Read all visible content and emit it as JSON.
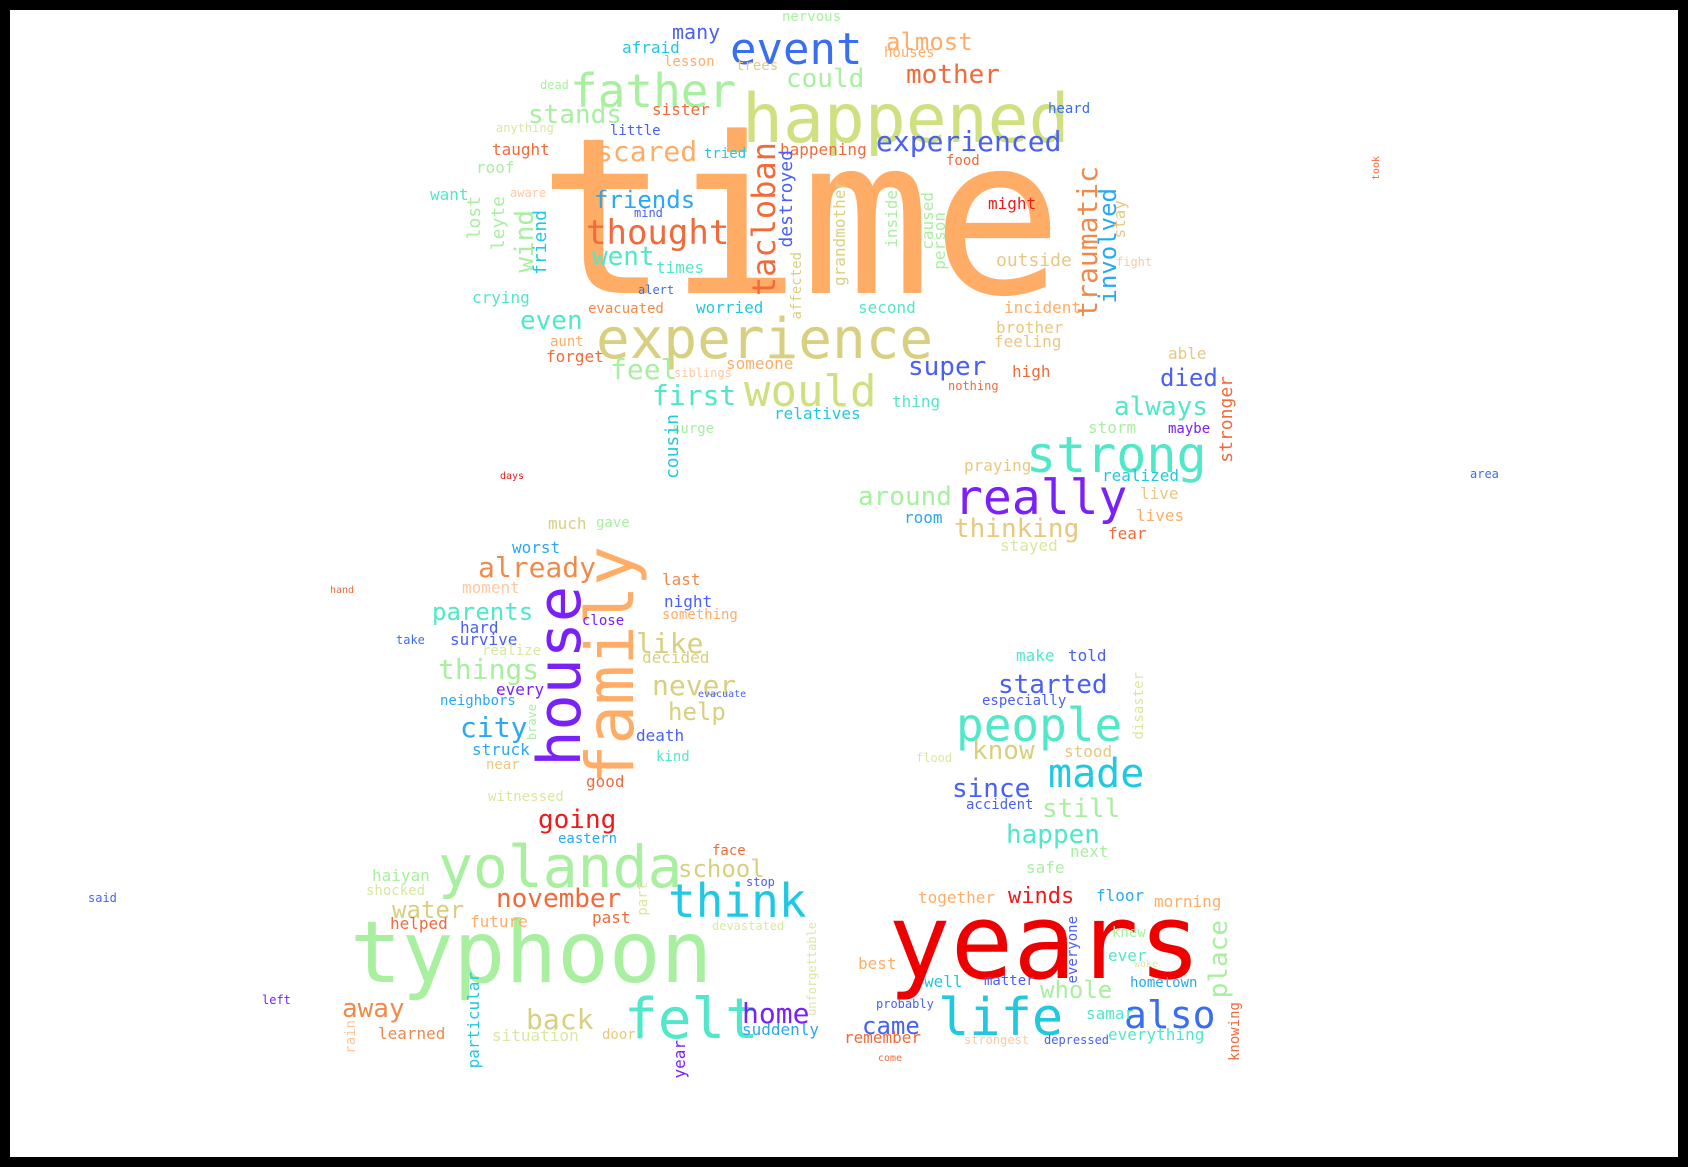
{
  "words": [
    {
      "text": "time",
      "color": "#ffad66",
      "vertical": false
    },
    {
      "text": "happened",
      "color": "#cfe080",
      "vertical": false
    },
    {
      "text": "experience",
      "color": "#d8d080",
      "vertical": false
    },
    {
      "text": "father",
      "color": "#a8f0a0",
      "vertical": false
    },
    {
      "text": "event",
      "color": "#3a6ef0",
      "vertical": false
    },
    {
      "text": "would",
      "color": "#cfe080",
      "vertical": false
    },
    {
      "text": "experienced",
      "color": "#4a60f0",
      "vertical": false
    },
    {
      "text": "strong",
      "color": "#50e8c8",
      "vertical": false
    },
    {
      "text": "really",
      "color": "#7a20f8",
      "vertical": false
    },
    {
      "text": "thought",
      "color": "#f06a3a",
      "vertical": false
    },
    {
      "text": "friends",
      "color": "#2aa8f0",
      "vertical": false
    },
    {
      "text": "mother",
      "color": "#f06a3a",
      "vertical": false
    },
    {
      "text": "could",
      "color": "#a8f0a0",
      "vertical": false
    },
    {
      "text": "almost",
      "color": "#ffad66",
      "vertical": false
    },
    {
      "text": "many",
      "color": "#4a60f0",
      "vertical": false
    },
    {
      "text": "stands",
      "color": "#a8f0a0",
      "vertical": false
    },
    {
      "text": "scared",
      "color": "#ffad66",
      "vertical": false
    },
    {
      "text": "tacloban",
      "color": "#f06a3a",
      "vertical": true
    },
    {
      "text": "traumatic",
      "color": "#f08a4a",
      "vertical": true
    },
    {
      "text": "involved",
      "color": "#2aa8f0",
      "vertical": true
    },
    {
      "text": "wind",
      "color": "#a8f0a0",
      "vertical": true
    },
    {
      "text": "went",
      "color": "#50e8c8",
      "vertical": false
    },
    {
      "text": "even",
      "color": "#50e8c8",
      "vertical": false
    },
    {
      "text": "feel",
      "color": "#a8f0a0",
      "vertical": false
    },
    {
      "text": "first",
      "color": "#50e8c8",
      "vertical": false
    },
    {
      "text": "super",
      "color": "#4a60f0",
      "vertical": false
    },
    {
      "text": "died",
      "color": "#4a60f0",
      "vertical": false
    },
    {
      "text": "always",
      "color": "#50e8c8",
      "vertical": false
    },
    {
      "text": "around",
      "color": "#a8f0a0",
      "vertical": false
    },
    {
      "text": "thinking",
      "color": "#e8c880",
      "vertical": false
    },
    {
      "text": "family",
      "color": "#ffad66",
      "vertical": true
    },
    {
      "text": "house",
      "color": "#7a20f8",
      "vertical": true
    },
    {
      "text": "already",
      "color": "#f08a4a",
      "vertical": false
    },
    {
      "text": "parents",
      "color": "#50e8c8",
      "vertical": false
    },
    {
      "text": "things",
      "color": "#a8f0a0",
      "vertical": false
    },
    {
      "text": "like",
      "color": "#d8d080",
      "vertical": false
    },
    {
      "text": "never",
      "color": "#d8d080",
      "vertical": false
    },
    {
      "text": "help",
      "color": "#d8d080",
      "vertical": false
    },
    {
      "text": "city",
      "color": "#2aa8f0",
      "vertical": false
    },
    {
      "text": "going",
      "color": "#ee1a1a",
      "vertical": false
    },
    {
      "text": "people",
      "color": "#50e8c8",
      "vertical": false
    },
    {
      "text": "started",
      "color": "#4a60f0",
      "vertical": false
    },
    {
      "text": "know",
      "color": "#d8d080",
      "vertical": false
    },
    {
      "text": "made",
      "color": "#20c8e0",
      "vertical": false
    },
    {
      "text": "since",
      "color": "#4a60f0",
      "vertical": false
    },
    {
      "text": "still",
      "color": "#a8f0a0",
      "vertical": false
    },
    {
      "text": "happen",
      "color": "#50e8c8",
      "vertical": false
    },
    {
      "text": "yolanda",
      "color": "#a8f0a0",
      "vertical": false
    },
    {
      "text": "typhoon",
      "color": "#a8f0a0",
      "vertical": false
    },
    {
      "text": "think",
      "color": "#20c8e0",
      "vertical": false
    },
    {
      "text": "school",
      "color": "#d8d080",
      "vertical": false
    },
    {
      "text": "november",
      "color": "#f06a3a",
      "vertical": false
    },
    {
      "text": "water",
      "color": "#d8d080",
      "vertical": false
    },
    {
      "text": "felt",
      "color": "#50e8c8",
      "vertical": false
    },
    {
      "text": "away",
      "color": "#f08a4a",
      "vertical": false
    },
    {
      "text": "back",
      "color": "#d8d080",
      "vertical": false
    },
    {
      "text": "home",
      "color": "#7a20f8",
      "vertical": false
    },
    {
      "text": "years",
      "color": "#ee0000",
      "vertical": false
    },
    {
      "text": "life",
      "color": "#20c8e0",
      "vertical": false
    },
    {
      "text": "also",
      "color": "#3a6ef0",
      "vertical": false
    },
    {
      "text": "winds",
      "color": "#ee1a1a",
      "vertical": false
    },
    {
      "text": "whole",
      "color": "#a8f0a0",
      "vertical": false
    },
    {
      "text": "came",
      "color": "#4a60f0",
      "vertical": false
    },
    {
      "text": "place",
      "color": "#a8f0a0",
      "vertical": true
    },
    {
      "text": "nervous",
      "color": "#a8f0a0",
      "vertical": false
    },
    {
      "text": "afraid",
      "color": "#20c8e0",
      "vertical": false
    },
    {
      "text": "houses",
      "color": "#ffad66",
      "vertical": false
    },
    {
      "text": "lesson",
      "color": "#ffad66",
      "vertical": false
    },
    {
      "text": "trees",
      "color": "#e8c880",
      "vertical": false
    },
    {
      "text": "dead",
      "color": "#a8f0a0",
      "vertical": false
    },
    {
      "text": "sister",
      "color": "#f06a3a",
      "vertical": false
    },
    {
      "text": "heard",
      "color": "#3a6ef0",
      "vertical": false
    },
    {
      "text": "anything",
      "color": "#d8e8a0",
      "vertical": false
    },
    {
      "text": "little",
      "color": "#4a60f0",
      "vertical": false
    },
    {
      "text": "taught",
      "color": "#f06a3a",
      "vertical": false
    },
    {
      "text": "tried",
      "color": "#20c8e0",
      "vertical": false
    },
    {
      "text": "happening",
      "color": "#f06a3a",
      "vertical": false
    },
    {
      "text": "roof",
      "color": "#a8f0a0",
      "vertical": false
    },
    {
      "text": "food",
      "color": "#f06a3a",
      "vertical": false
    },
    {
      "text": "want",
      "color": "#50e8c8",
      "vertical": false
    },
    {
      "text": "aware",
      "color": "#ffc8a0",
      "vertical": false
    },
    {
      "text": "mind",
      "color": "#4a60f0",
      "vertical": false
    },
    {
      "text": "might",
      "color": "#ee1a1a",
      "vertical": false
    },
    {
      "text": "lost",
      "color": "#a8f0a0",
      "vertical": true
    },
    {
      "text": "leyte",
      "color": "#a8f0a0",
      "vertical": true
    },
    {
      "text": "friend",
      "color": "#20c8e0",
      "vertical": true
    },
    {
      "text": "destroyed",
      "color": "#4a60f0",
      "vertical": true
    },
    {
      "text": "affected",
      "color": "#d8d080",
      "vertical": true
    },
    {
      "text": "grandmother",
      "color": "#d8d080",
      "vertical": true
    },
    {
      "text": "inside",
      "color": "#a8f0a0",
      "vertical": true
    },
    {
      "text": "caused",
      "color": "#a8f0a0",
      "vertical": true
    },
    {
      "text": "person",
      "color": "#a8f0a0",
      "vertical": true
    },
    {
      "text": "stay",
      "color": "#e8c880",
      "vertical": true
    },
    {
      "text": "fight",
      "color": "#ffc8a0",
      "vertical": false
    },
    {
      "text": "times",
      "color": "#50e8c8",
      "vertical": false
    },
    {
      "text": "outside",
      "color": "#e8c880",
      "vertical": false
    },
    {
      "text": "alert",
      "color": "#3a6ef0",
      "vertical": false
    },
    {
      "text": "crying",
      "color": "#50e8c8",
      "vertical": false
    },
    {
      "text": "evacuated",
      "color": "#f08a4a",
      "vertical": false
    },
    {
      "text": "worried",
      "color": "#20c8e0",
      "vertical": false
    },
    {
      "text": "second",
      "color": "#50e8c8",
      "vertical": false
    },
    {
      "text": "incident",
      "color": "#ffad66",
      "vertical": false
    },
    {
      "text": "brother",
      "color": "#e8c880",
      "vertical": false
    },
    {
      "text": "feeling",
      "color": "#e8c880",
      "vertical": false
    },
    {
      "text": "aunt",
      "color": "#ffad66",
      "vertical": false
    },
    {
      "text": "forget",
      "color": "#f06a3a",
      "vertical": false
    },
    {
      "text": "someone",
      "color": "#ffad66",
      "vertical": false
    },
    {
      "text": "siblings",
      "color": "#ffc8a0",
      "vertical": false
    },
    {
      "text": "nothing",
      "color": "#f06a3a",
      "vertical": false
    },
    {
      "text": "high",
      "color": "#f06a3a",
      "vertical": false
    },
    {
      "text": "able",
      "color": "#e8c880",
      "vertical": false
    },
    {
      "text": "thing",
      "color": "#50e8c8",
      "vertical": false
    },
    {
      "text": "relatives",
      "color": "#20c8e0",
      "vertical": false
    },
    {
      "text": "surge",
      "color": "#a8f0a0",
      "vertical": false
    },
    {
      "text": "cousin",
      "color": "#20c8e0",
      "vertical": true
    },
    {
      "text": "storm",
      "color": "#a8f0a0",
      "vertical": false
    },
    {
      "text": "maybe",
      "color": "#7a20f8",
      "vertical": false
    },
    {
      "text": "stronger",
      "color": "#f06a3a",
      "vertical": true
    },
    {
      "text": "praying",
      "color": "#e8c880",
      "vertical": false
    },
    {
      "text": "realized",
      "color": "#20c8e0",
      "vertical": false
    },
    {
      "text": "live",
      "color": "#e8c880",
      "vertical": false
    },
    {
      "text": "lives",
      "color": "#ffad66",
      "vertical": false
    },
    {
      "text": "room",
      "color": "#2aa8f0",
      "vertical": false
    },
    {
      "text": "fear",
      "color": "#f06a3a",
      "vertical": false
    },
    {
      "text": "stayed",
      "color": "#d8e8a0",
      "vertical": false
    },
    {
      "text": "took",
      "color": "#f06a3a",
      "vertical": true
    },
    {
      "text": "area",
      "color": "#3a6ef0",
      "vertical": false
    },
    {
      "text": "days",
      "color": "#ee1a1a",
      "vertical": false
    },
    {
      "text": "much",
      "color": "#d8d080",
      "vertical": false
    },
    {
      "text": "gave",
      "color": "#a8f0a0",
      "vertical": false
    },
    {
      "text": "worst",
      "color": "#2aa8f0",
      "vertical": false
    },
    {
      "text": "last",
      "color": "#f08a4a",
      "vertical": false
    },
    {
      "text": "moment",
      "color": "#ffc8a0",
      "vertical": false
    },
    {
      "text": "something",
      "color": "#ffad66",
      "vertical": false
    },
    {
      "text": "night",
      "color": "#4a60f0",
      "vertical": false
    },
    {
      "text": "hand",
      "color": "#f06a3a",
      "vertical": false
    },
    {
      "text": "hard",
      "color": "#4a60f0",
      "vertical": false
    },
    {
      "text": "close",
      "color": "#7a20f8",
      "vertical": false
    },
    {
      "text": "take",
      "color": "#3a6ef0",
      "vertical": false
    },
    {
      "text": "survive",
      "color": "#4a60f0",
      "vertical": false
    },
    {
      "text": "realize",
      "color": "#d8e8a0",
      "vertical": false
    },
    {
      "text": "decided",
      "color": "#d8d080",
      "vertical": false
    },
    {
      "text": "every",
      "color": "#7a20f8",
      "vertical": false
    },
    {
      "text": "evacuate",
      "color": "#4a60f0",
      "vertical": false
    },
    {
      "text": "neighbors",
      "color": "#2aa8f0",
      "vertical": false
    },
    {
      "text": "brave",
      "color": "#a8f0a0",
      "vertical": true
    },
    {
      "text": "death",
      "color": "#4a60f0",
      "vertical": false
    },
    {
      "text": "struck",
      "color": "#2aa8f0",
      "vertical": false
    },
    {
      "text": "kind",
      "color": "#50e8c8",
      "vertical": false
    },
    {
      "text": "near",
      "color": "#e8c880",
      "vertical": false
    },
    {
      "text": "good",
      "color": "#f06a3a",
      "vertical": false
    },
    {
      "text": "witnessed",
      "color": "#d8e8a0",
      "vertical": false
    },
    {
      "text": "eastern",
      "color": "#2aa8f0",
      "vertical": false
    },
    {
      "text": "make",
      "color": "#50e8c8",
      "vertical": false
    },
    {
      "text": "told",
      "color": "#4a60f0",
      "vertical": false
    },
    {
      "text": "especially",
      "color": "#4a60f0",
      "vertical": false
    },
    {
      "text": "disaster",
      "color": "#d8e8a0",
      "vertical": true
    },
    {
      "text": "stood",
      "color": "#e8c880",
      "vertical": false
    },
    {
      "text": "flood",
      "color": "#d8e8a0",
      "vertical": false
    },
    {
      "text": "accident",
      "color": "#4a60f0",
      "vertical": false
    },
    {
      "text": "face",
      "color": "#f06a3a",
      "vertical": false
    },
    {
      "text": "next",
      "color": "#a8f0a0",
      "vertical": false
    },
    {
      "text": "haiyan",
      "color": "#a8f0a0",
      "vertical": false
    },
    {
      "text": "shocked",
      "color": "#d8e8a0",
      "vertical": false
    },
    {
      "text": "stop",
      "color": "#4a60f0",
      "vertical": false
    },
    {
      "text": "safe",
      "color": "#a8f0a0",
      "vertical": false
    },
    {
      "text": "part",
      "color": "#d8e8a0",
      "vertical": true
    },
    {
      "text": "said",
      "color": "#4a60f0",
      "vertical": false
    },
    {
      "text": "helped",
      "color": "#f06a3a",
      "vertical": false
    },
    {
      "text": "future",
      "color": "#ffad66",
      "vertical": false
    },
    {
      "text": "past",
      "color": "#f06a3a",
      "vertical": false
    },
    {
      "text": "devastated",
      "color": "#d8e8a0",
      "vertical": false
    },
    {
      "text": "together",
      "color": "#ffad66",
      "vertical": false
    },
    {
      "text": "floor",
      "color": "#2aa8f0",
      "vertical": false
    },
    {
      "text": "morning",
      "color": "#ffad66",
      "vertical": false
    },
    {
      "text": "everyone",
      "color": "#4a60f0",
      "vertical": true
    },
    {
      "text": "knew",
      "color": "#a8f0a0",
      "vertical": false
    },
    {
      "text": "unforgettable",
      "color": "#d8e8a0",
      "vertical": true
    },
    {
      "text": "best",
      "color": "#ffad66",
      "vertical": false
    },
    {
      "text": "ever",
      "color": "#50e8c8",
      "vertical": false
    },
    {
      "text": "woke",
      "color": "#d8e8a0",
      "vertical": false
    },
    {
      "text": "well",
      "color": "#20c8e0",
      "vertical": false
    },
    {
      "text": "matter",
      "color": "#4a60f0",
      "vertical": false
    },
    {
      "text": "hometown",
      "color": "#2aa8f0",
      "vertical": false
    },
    {
      "text": "left",
      "color": "#7a20f8",
      "vertical": false
    },
    {
      "text": "particular",
      "color": "#20c8e0",
      "vertical": true
    },
    {
      "text": "probably",
      "color": "#4a60f0",
      "vertical": false
    },
    {
      "text": "samar",
      "color": "#50e8c8",
      "vertical": false
    },
    {
      "text": "situation",
      "color": "#d8e8a0",
      "vertical": false
    },
    {
      "text": "door",
      "color": "#e8c880",
      "vertical": false
    },
    {
      "text": "suddenly",
      "color": "#2aa8f0",
      "vertical": false
    },
    {
      "text": "remember",
      "color": "#f06a3a",
      "vertical": false
    },
    {
      "text": "strongest",
      "color": "#ffc8a0",
      "vertical": false
    },
    {
      "text": "depressed",
      "color": "#4a60f0",
      "vertical": false
    },
    {
      "text": "everything",
      "color": "#50e8c8",
      "vertical": false
    },
    {
      "text": "knowing",
      "color": "#f06a3a",
      "vertical": true
    },
    {
      "text": "learned",
      "color": "#f08a4a",
      "vertical": false
    },
    {
      "text": "rain",
      "color": "#ffc8a0",
      "vertical": true
    },
    {
      "text": "year",
      "color": "#7a20f8",
      "vertical": true
    },
    {
      "text": "come",
      "color": "#f06a3a",
      "vertical": false
    }
  ]
}
